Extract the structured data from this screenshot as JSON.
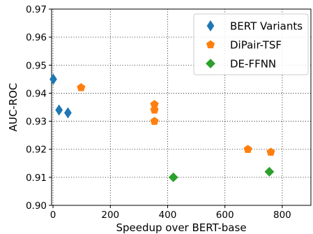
{
  "chart_data": {
    "type": "scatter",
    "title": "",
    "xlabel": "Speedup over BERT-base",
    "ylabel": "AUC-ROC",
    "xlim": [
      -5,
      900
    ],
    "ylim": [
      0.9,
      0.97
    ],
    "xticks": [
      0,
      200,
      400,
      600,
      800
    ],
    "yticks": [
      0.9,
      0.91,
      0.92,
      0.93,
      0.94,
      0.95,
      0.96,
      0.97
    ],
    "xtick_labels": [
      "0",
      "200",
      "400",
      "600",
      "800"
    ],
    "ytick_labels": [
      "0.90",
      "0.91",
      "0.92",
      "0.93",
      "0.94",
      "0.95",
      "0.96",
      "0.97"
    ],
    "grid": true,
    "legend_position": "top-right",
    "series": [
      {
        "name": "BERT Variants",
        "marker": "diamond",
        "color": "#1f77b4",
        "points": [
          {
            "x": 1,
            "y": 0.945
          },
          {
            "x": 21,
            "y": 0.934
          },
          {
            "x": 52,
            "y": 0.933
          }
        ]
      },
      {
        "name": "DiPair-TSF",
        "marker": "pentagon",
        "color": "#ff7f0e",
        "points": [
          {
            "x": 98,
            "y": 0.942
          },
          {
            "x": 354,
            "y": 0.936
          },
          {
            "x": 354,
            "y": 0.934
          },
          {
            "x": 354,
            "y": 0.93
          },
          {
            "x": 680,
            "y": 0.92
          },
          {
            "x": 760,
            "y": 0.919
          }
        ]
      },
      {
        "name": "DE-FFNN",
        "marker": "diamond-wide",
        "color": "#2ca02c",
        "points": [
          {
            "x": 420,
            "y": 0.91
          },
          {
            "x": 755,
            "y": 0.912
          }
        ]
      }
    ]
  }
}
